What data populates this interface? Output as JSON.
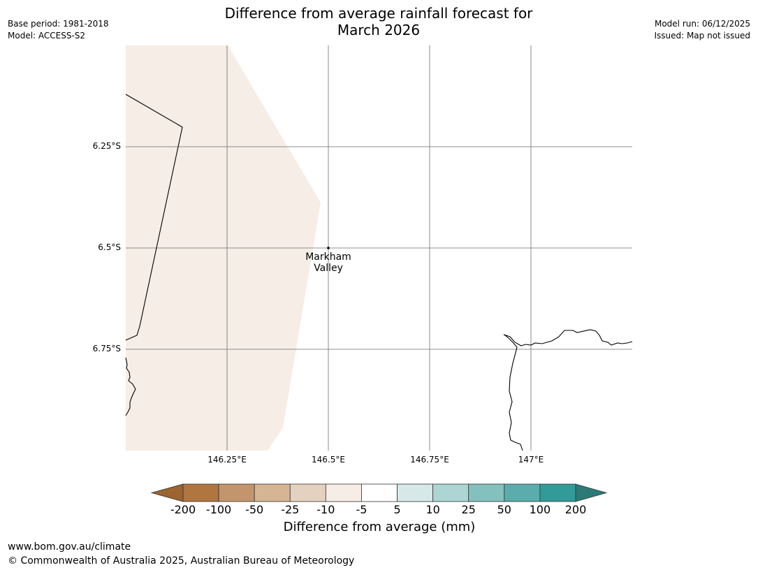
{
  "title": {
    "line1": "Difference from average rainfall forecast for",
    "line2": "March 2026"
  },
  "meta_left": {
    "base_period": "Base period: 1981-2018",
    "model": "Model: ACCESS-S2"
  },
  "meta_right": {
    "model_run": "Model run: 06/12/2025",
    "issued": "Issued: Map not issued"
  },
  "map": {
    "lat_labels": [
      "6.25°S",
      "6.5°S",
      "6.75°S"
    ],
    "lon_labels": [
      "146.25°E",
      "146.5°E",
      "146.75°E",
      "147°E"
    ],
    "place": {
      "name_line1": "Markham",
      "name_line2": "Valley",
      "lon": 146.5,
      "lat": -6.5
    },
    "shaded_category": "-10 to -5",
    "shade_color": "#f5ede6"
  },
  "colorbar": {
    "label": "Difference from average (mm)",
    "ticks": [
      "-200",
      "-100",
      "-50",
      "-25",
      "-10",
      "-5",
      "5",
      "10",
      "25",
      "50",
      "100",
      "200"
    ],
    "colors": [
      "#9c6430",
      "#b07640",
      "#c3956c",
      "#d6b595",
      "#e5d1bf",
      "#f5ede6",
      "#ffffff",
      "#d6e8e8",
      "#acd5d4",
      "#84c1be",
      "#5aadac",
      "#329a98",
      "#2c7a78"
    ]
  },
  "footer": {
    "url": "www.bom.gov.au/climate",
    "copyright": "© Commonwealth of Australia 2025, Australian Bureau of Meteorology"
  }
}
